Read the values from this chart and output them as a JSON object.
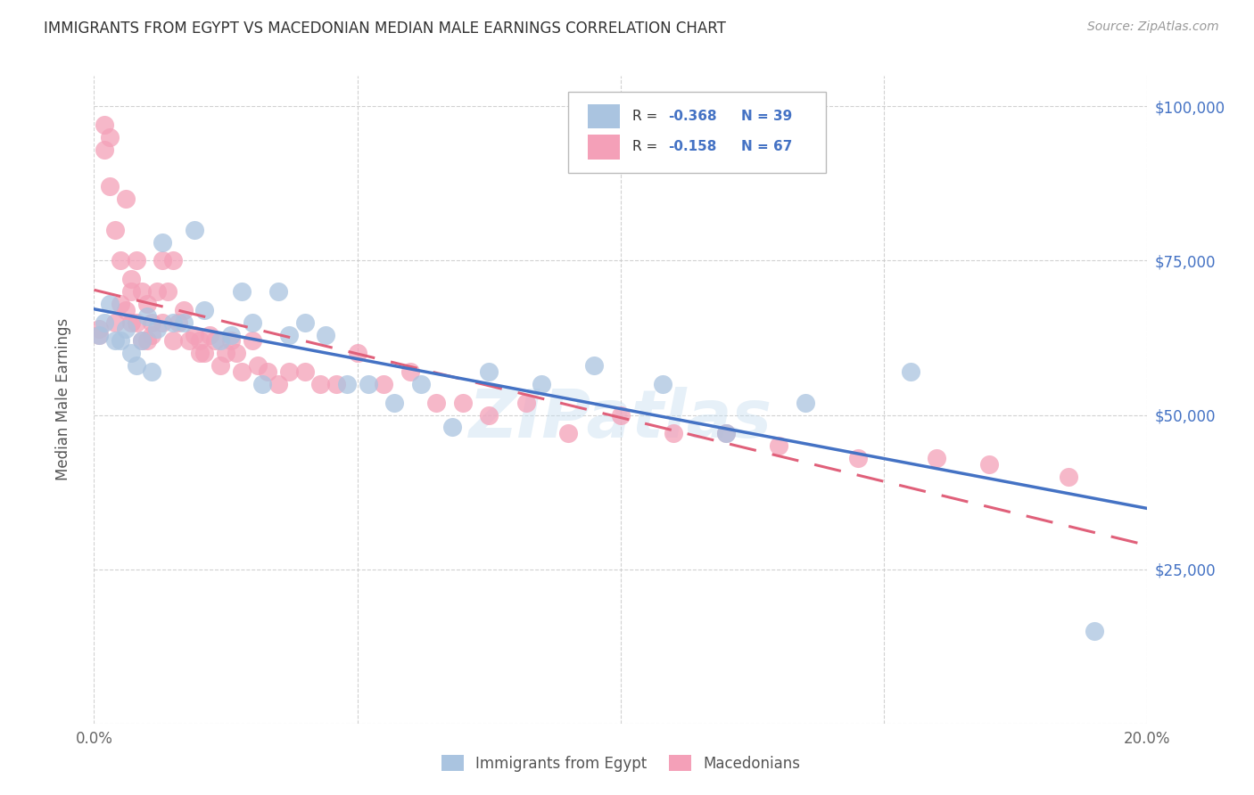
{
  "title": "IMMIGRANTS FROM EGYPT VS MACEDONIAN MEDIAN MALE EARNINGS CORRELATION CHART",
  "source": "Source: ZipAtlas.com",
  "ylabel": "Median Male Earnings",
  "x_min": 0.0,
  "x_max": 0.2,
  "y_min": 0,
  "y_max": 105000,
  "color_egypt": "#aac4e0",
  "color_mac": "#f4a0b8",
  "color_egypt_line": "#4472c4",
  "color_mac_line": "#e0607a",
  "legend_label_egypt": "Immigrants from Egypt",
  "legend_label_mac": "Macedonians",
  "r_egypt": "-0.368",
  "n_egypt": "39",
  "r_mac": "-0.158",
  "n_mac": "67",
  "egypt_x": [
    0.001,
    0.002,
    0.003,
    0.004,
    0.005,
    0.006,
    0.007,
    0.008,
    0.009,
    0.01,
    0.011,
    0.012,
    0.013,
    0.015,
    0.017,
    0.019,
    0.021,
    0.024,
    0.026,
    0.028,
    0.03,
    0.032,
    0.035,
    0.037,
    0.04,
    0.044,
    0.048,
    0.052,
    0.057,
    0.062,
    0.068,
    0.075,
    0.085,
    0.095,
    0.108,
    0.12,
    0.135,
    0.155,
    0.19
  ],
  "egypt_y": [
    63000,
    65000,
    68000,
    62000,
    62000,
    64000,
    60000,
    58000,
    62000,
    66000,
    57000,
    64000,
    78000,
    65000,
    65000,
    80000,
    67000,
    62000,
    63000,
    70000,
    65000,
    55000,
    70000,
    63000,
    65000,
    63000,
    55000,
    55000,
    52000,
    55000,
    48000,
    57000,
    55000,
    58000,
    55000,
    47000,
    52000,
    57000,
    15000
  ],
  "mac_x": [
    0.001,
    0.001,
    0.002,
    0.002,
    0.003,
    0.003,
    0.004,
    0.004,
    0.005,
    0.005,
    0.006,
    0.006,
    0.007,
    0.007,
    0.007,
    0.008,
    0.008,
    0.009,
    0.009,
    0.01,
    0.01,
    0.011,
    0.011,
    0.012,
    0.013,
    0.013,
    0.014,
    0.015,
    0.015,
    0.016,
    0.017,
    0.018,
    0.019,
    0.02,
    0.02,
    0.021,
    0.022,
    0.023,
    0.024,
    0.025,
    0.026,
    0.027,
    0.028,
    0.03,
    0.031,
    0.033,
    0.035,
    0.037,
    0.04,
    0.043,
    0.046,
    0.05,
    0.055,
    0.06,
    0.065,
    0.07,
    0.075,
    0.082,
    0.09,
    0.1,
    0.11,
    0.12,
    0.13,
    0.145,
    0.16,
    0.17,
    0.185
  ],
  "mac_y": [
    64000,
    63000,
    97000,
    93000,
    95000,
    87000,
    80000,
    65000,
    75000,
    68000,
    85000,
    67000,
    72000,
    70000,
    65000,
    75000,
    65000,
    70000,
    62000,
    68000,
    62000,
    65000,
    63000,
    70000,
    75000,
    65000,
    70000,
    75000,
    62000,
    65000,
    67000,
    62000,
    63000,
    60000,
    62000,
    60000,
    63000,
    62000,
    58000,
    60000,
    62000,
    60000,
    57000,
    62000,
    58000,
    57000,
    55000,
    57000,
    57000,
    55000,
    55000,
    60000,
    55000,
    57000,
    52000,
    52000,
    50000,
    52000,
    47000,
    50000,
    47000,
    47000,
    45000,
    43000,
    43000,
    42000,
    40000
  ]
}
